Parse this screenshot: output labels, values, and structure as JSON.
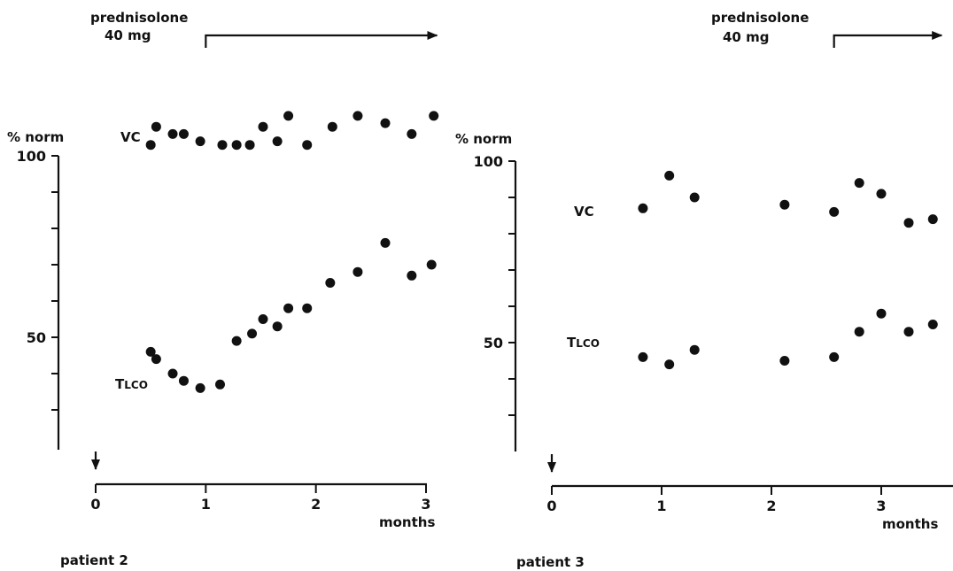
{
  "chart_data": [
    {
      "type": "scatter",
      "caption": "patient 2",
      "treatment": {
        "label_line1": "prednisolone",
        "label_line2": "40 mg",
        "start_month": 1.0,
        "end_month": 3.1
      },
      "y_unit_label": "% norm",
      "y_tick_labels": [
        "100",
        "50"
      ],
      "ylim": [
        20,
        110
      ],
      "x_tick_labels": [
        "0",
        "1",
        "2",
        "3"
      ],
      "xlabel": "months",
      "xlim": [
        0,
        3.1
      ],
      "start_marker_month": 0,
      "series": [
        {
          "name": "VC",
          "points": [
            [
              0.5,
              103
            ],
            [
              0.55,
              108
            ],
            [
              0.7,
              106
            ],
            [
              0.8,
              106
            ],
            [
              0.95,
              104
            ],
            [
              1.15,
              103
            ],
            [
              1.28,
              103
            ],
            [
              1.4,
              103
            ],
            [
              1.52,
              108
            ],
            [
              1.65,
              104
            ],
            [
              1.75,
              111
            ],
            [
              1.92,
              103
            ],
            [
              2.15,
              108
            ],
            [
              2.38,
              111
            ],
            [
              2.63,
              109
            ],
            [
              2.87,
              106
            ],
            [
              3.07,
              111
            ]
          ]
        },
        {
          "name": "TLCO",
          "points": [
            [
              0.5,
              46
            ],
            [
              0.55,
              44
            ],
            [
              0.7,
              40
            ],
            [
              0.8,
              38
            ],
            [
              0.95,
              36
            ],
            [
              1.13,
              37
            ],
            [
              1.28,
              49
            ],
            [
              1.42,
              51
            ],
            [
              1.52,
              55
            ],
            [
              1.65,
              53
            ],
            [
              1.75,
              58
            ],
            [
              1.92,
              58
            ],
            [
              2.13,
              65
            ],
            [
              2.38,
              68
            ],
            [
              2.63,
              76
            ],
            [
              2.87,
              67
            ],
            [
              3.05,
              70
            ]
          ]
        }
      ]
    },
    {
      "type": "scatter",
      "caption": "patient 3",
      "treatment": {
        "label_line1": "prednisolone",
        "label_line2": "40 mg",
        "start_month": 2.57,
        "end_month": 3.55
      },
      "y_unit_label": "% norm",
      "y_tick_labels": [
        "100",
        "50"
      ],
      "ylim": [
        20,
        110
      ],
      "x_tick_labels": [
        "0",
        "1",
        "2",
        "3"
      ],
      "xlabel": "months",
      "xlim": [
        0,
        3.6
      ],
      "start_marker_month": 0,
      "series": [
        {
          "name": "VC",
          "points": [
            [
              0.83,
              87
            ],
            [
              1.07,
              96
            ],
            [
              1.3,
              90
            ],
            [
              2.12,
              88
            ],
            [
              2.57,
              86
            ],
            [
              2.8,
              94
            ],
            [
              3.0,
              91
            ],
            [
              3.25,
              83
            ],
            [
              3.47,
              84
            ]
          ]
        },
        {
          "name": "TLCO",
          "points": [
            [
              0.83,
              46
            ],
            [
              1.07,
              44
            ],
            [
              1.3,
              48
            ],
            [
              2.12,
              45
            ],
            [
              2.57,
              46
            ],
            [
              2.8,
              53
            ],
            [
              3.0,
              58
            ],
            [
              3.25,
              53
            ],
            [
              3.47,
              55
            ]
          ]
        }
      ]
    }
  ]
}
